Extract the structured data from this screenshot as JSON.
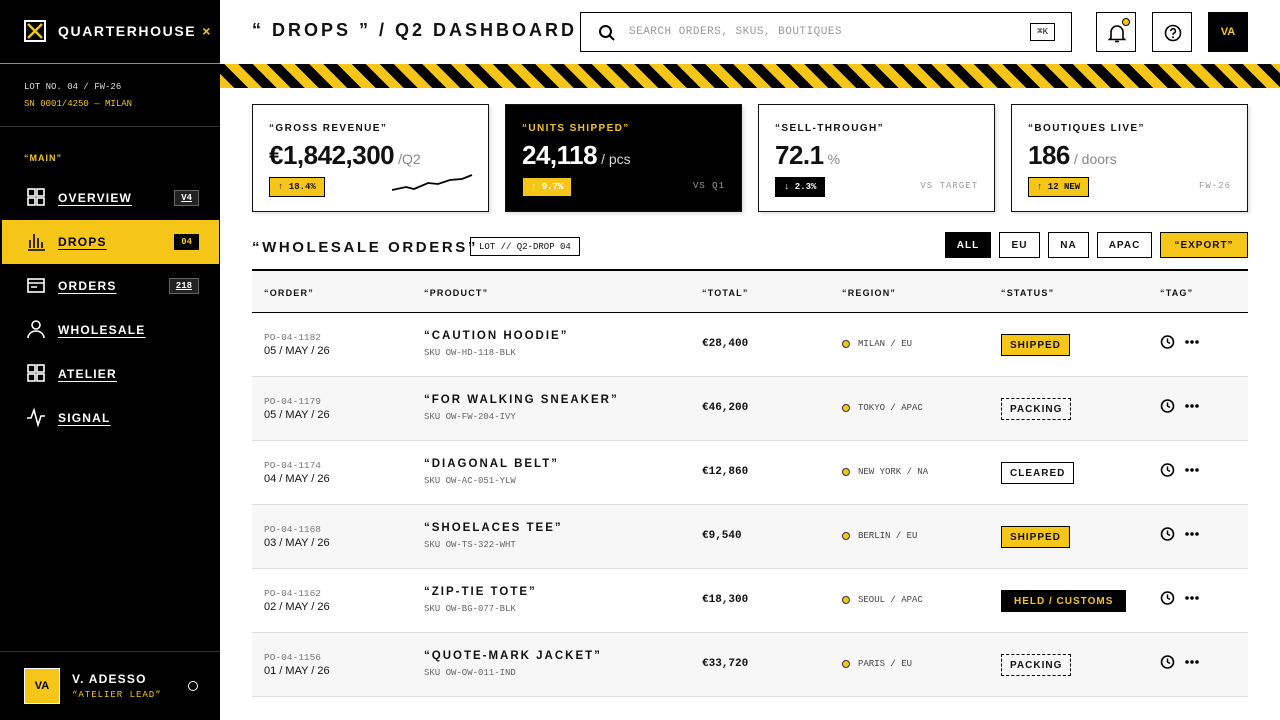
{
  "sidebar": {
    "brand": "QUARTERHOUSE",
    "brand_mark": "×",
    "lot": "LOT NO. 04 / FW-26",
    "serial": "SN 0001/4250 — MILAN",
    "section": "“MAIN”",
    "nav": [
      {
        "label": "OVERVIEW",
        "badge": "V4"
      },
      {
        "label": "DROPS",
        "badge": "04"
      },
      {
        "label": "ORDERS",
        "badge": "218"
      },
      {
        "label": "WHOLESALE"
      },
      {
        "label": "ATELIER"
      },
      {
        "label": "SIGNAL"
      }
    ],
    "user": {
      "initials": "VA",
      "name": "V. ADESSO",
      "role": "“ATELIER LEAD”"
    }
  },
  "header": {
    "title_quoted": "“ DROPS ”",
    "title_rest": "/ Q2 DASHBOARD",
    "search_placeholder": "SEARCH ORDERS, SKUS, BOUTIQUES",
    "shortcut": "⌘K",
    "avatar": "VA"
  },
  "kpis": [
    {
      "label": "“GROSS REVENUE”",
      "value": "€1,842,300",
      "unit": "/Q2",
      "delta": "↑ 18.4%"
    },
    {
      "label": "“UNITS SHIPPED”",
      "value": "24,118",
      "unit": "/ pcs",
      "delta": "↑ 9.7%",
      "note": "VS Q1"
    },
    {
      "label": "“SELL-THROUGH”",
      "value": "72.1",
      "unit": "%",
      "delta": "↓ 2.3%",
      "note": "VS TARGET"
    },
    {
      "label": "“BOUTIQUES LIVE”",
      "value": "186",
      "unit": "/ doors",
      "delta": "↑ 12 NEW",
      "note": "FW-26"
    }
  ],
  "orders": {
    "title": "“WHOLESALE ORDERS”",
    "lot": "LOT // Q2-DROP 04",
    "filters": [
      "ALL",
      "EU",
      "NA",
      "APAC"
    ],
    "export": "“EXPORT”",
    "columns": [
      "“ORDER”",
      "“PRODUCT”",
      "“TOTAL”",
      "“REGION”",
      "“STATUS”",
      "“TAG”"
    ],
    "rows": [
      {
        "id": "PO-04-1182",
        "date": "05 / MAY / 26",
        "product": "“CAUTION HOODIE”",
        "sku": "SKU OW-HD-118-BLK",
        "total": "€28,400",
        "region": "MILAN / EU",
        "status": "SHIPPED"
      },
      {
        "id": "PO-04-1179",
        "date": "05 / MAY / 26",
        "product": "“FOR WALKING SNEAKER”",
        "sku": "SKU OW-FW-204-IVY",
        "total": "€46,200",
        "region": "TOKYO / APAC",
        "status": "PACKING"
      },
      {
        "id": "PO-04-1174",
        "date": "04 / MAY / 26",
        "product": "“DIAGONAL BELT”",
        "sku": "SKU OW-AC-051-YLW",
        "total": "€12,860",
        "region": "NEW YORK / NA",
        "status": "CLEARED"
      },
      {
        "id": "PO-04-1168",
        "date": "03 / MAY / 26",
        "product": "“SHOELACES TEE”",
        "sku": "SKU OW-TS-322-WHT",
        "total": "€9,540",
        "region": "BERLIN / EU",
        "status": "SHIPPED"
      },
      {
        "id": "PO-04-1162",
        "date": "02 / MAY / 26",
        "product": "“ZIP-TIE TOTE”",
        "sku": "SKU OW-BG-077-BLK",
        "total": "€18,300",
        "region": "SEOUL / APAC",
        "status": "HELD / CUSTOMS"
      },
      {
        "id": "PO-04-1156",
        "date": "01 / MAY / 26",
        "product": "“QUOTE-MARK JACKET”",
        "sku": "SKU OW-OW-011-IND",
        "total": "€33,720",
        "region": "PARIS / EU",
        "status": "PACKING"
      }
    ]
  }
}
